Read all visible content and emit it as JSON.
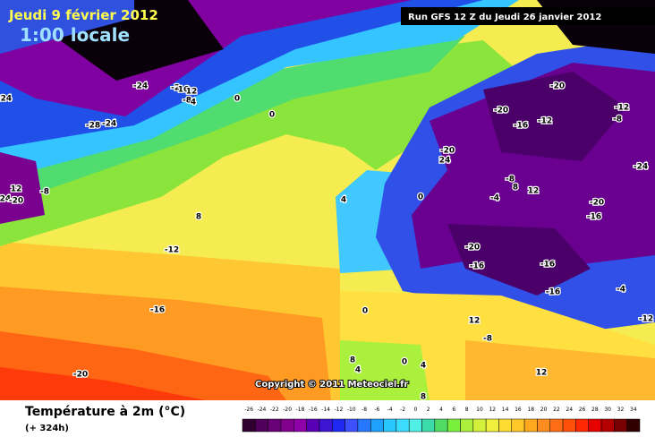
{
  "header": {
    "date": "Jeudi 9 février 2012",
    "time": "1:00 locale",
    "run": "Run GFS 12 Z du Jeudi 26 janvier 2012"
  },
  "map": {
    "contour_labels": [
      -24,
      -24,
      -2,
      16,
      12,
      -8,
      4,
      -28,
      -2,
      4,
      0,
      0,
      -24,
      12,
      -20,
      -8,
      8,
      -12,
      -16,
      -20,
      4,
      0,
      -4,
      -20,
      -16,
      -12,
      -20,
      -12,
      -8,
      -24,
      -20,
      24,
      -8,
      8,
      12,
      -20,
      -16,
      -20,
      -16,
      -16,
      -16,
      -4,
      -12,
      0,
      12,
      -8,
      0,
      4,
      4,
      8,
      12,
      8
    ],
    "copyright": "Copyright © 2011 Meteociel.fr"
  },
  "legend": {
    "title": "Température à 2m (°C)",
    "lead_time": "(+ 324h)",
    "scale_values": [
      -26,
      -24,
      -22,
      -20,
      -18,
      -16,
      -14,
      -12,
      -10,
      -8,
      -6,
      -4,
      -2,
      0,
      2,
      4,
      6,
      8,
      10,
      12,
      14,
      16,
      18,
      20,
      22,
      24,
      26,
      28,
      30,
      32,
      34
    ],
    "colors": [
      "#300030",
      "#50005a",
      "#6a0078",
      "#80008c",
      "#9000a8",
      "#5a00b4",
      "#3c14d2",
      "#1e28f0",
      "#3c50ff",
      "#2878ff",
      "#1ea0ff",
      "#28c8ff",
      "#3cdcff",
      "#50f0e6",
      "#3cdcaa",
      "#50dc64",
      "#78f03c",
      "#aaf03c",
      "#d2f03c",
      "#f0f03c",
      "#ffdc32",
      "#ffc828",
      "#ffaa1e",
      "#ff8c1e",
      "#ff6e14",
      "#ff500a",
      "#ff2800",
      "#e60000",
      "#b40000",
      "#780000",
      "#300000"
    ]
  }
}
